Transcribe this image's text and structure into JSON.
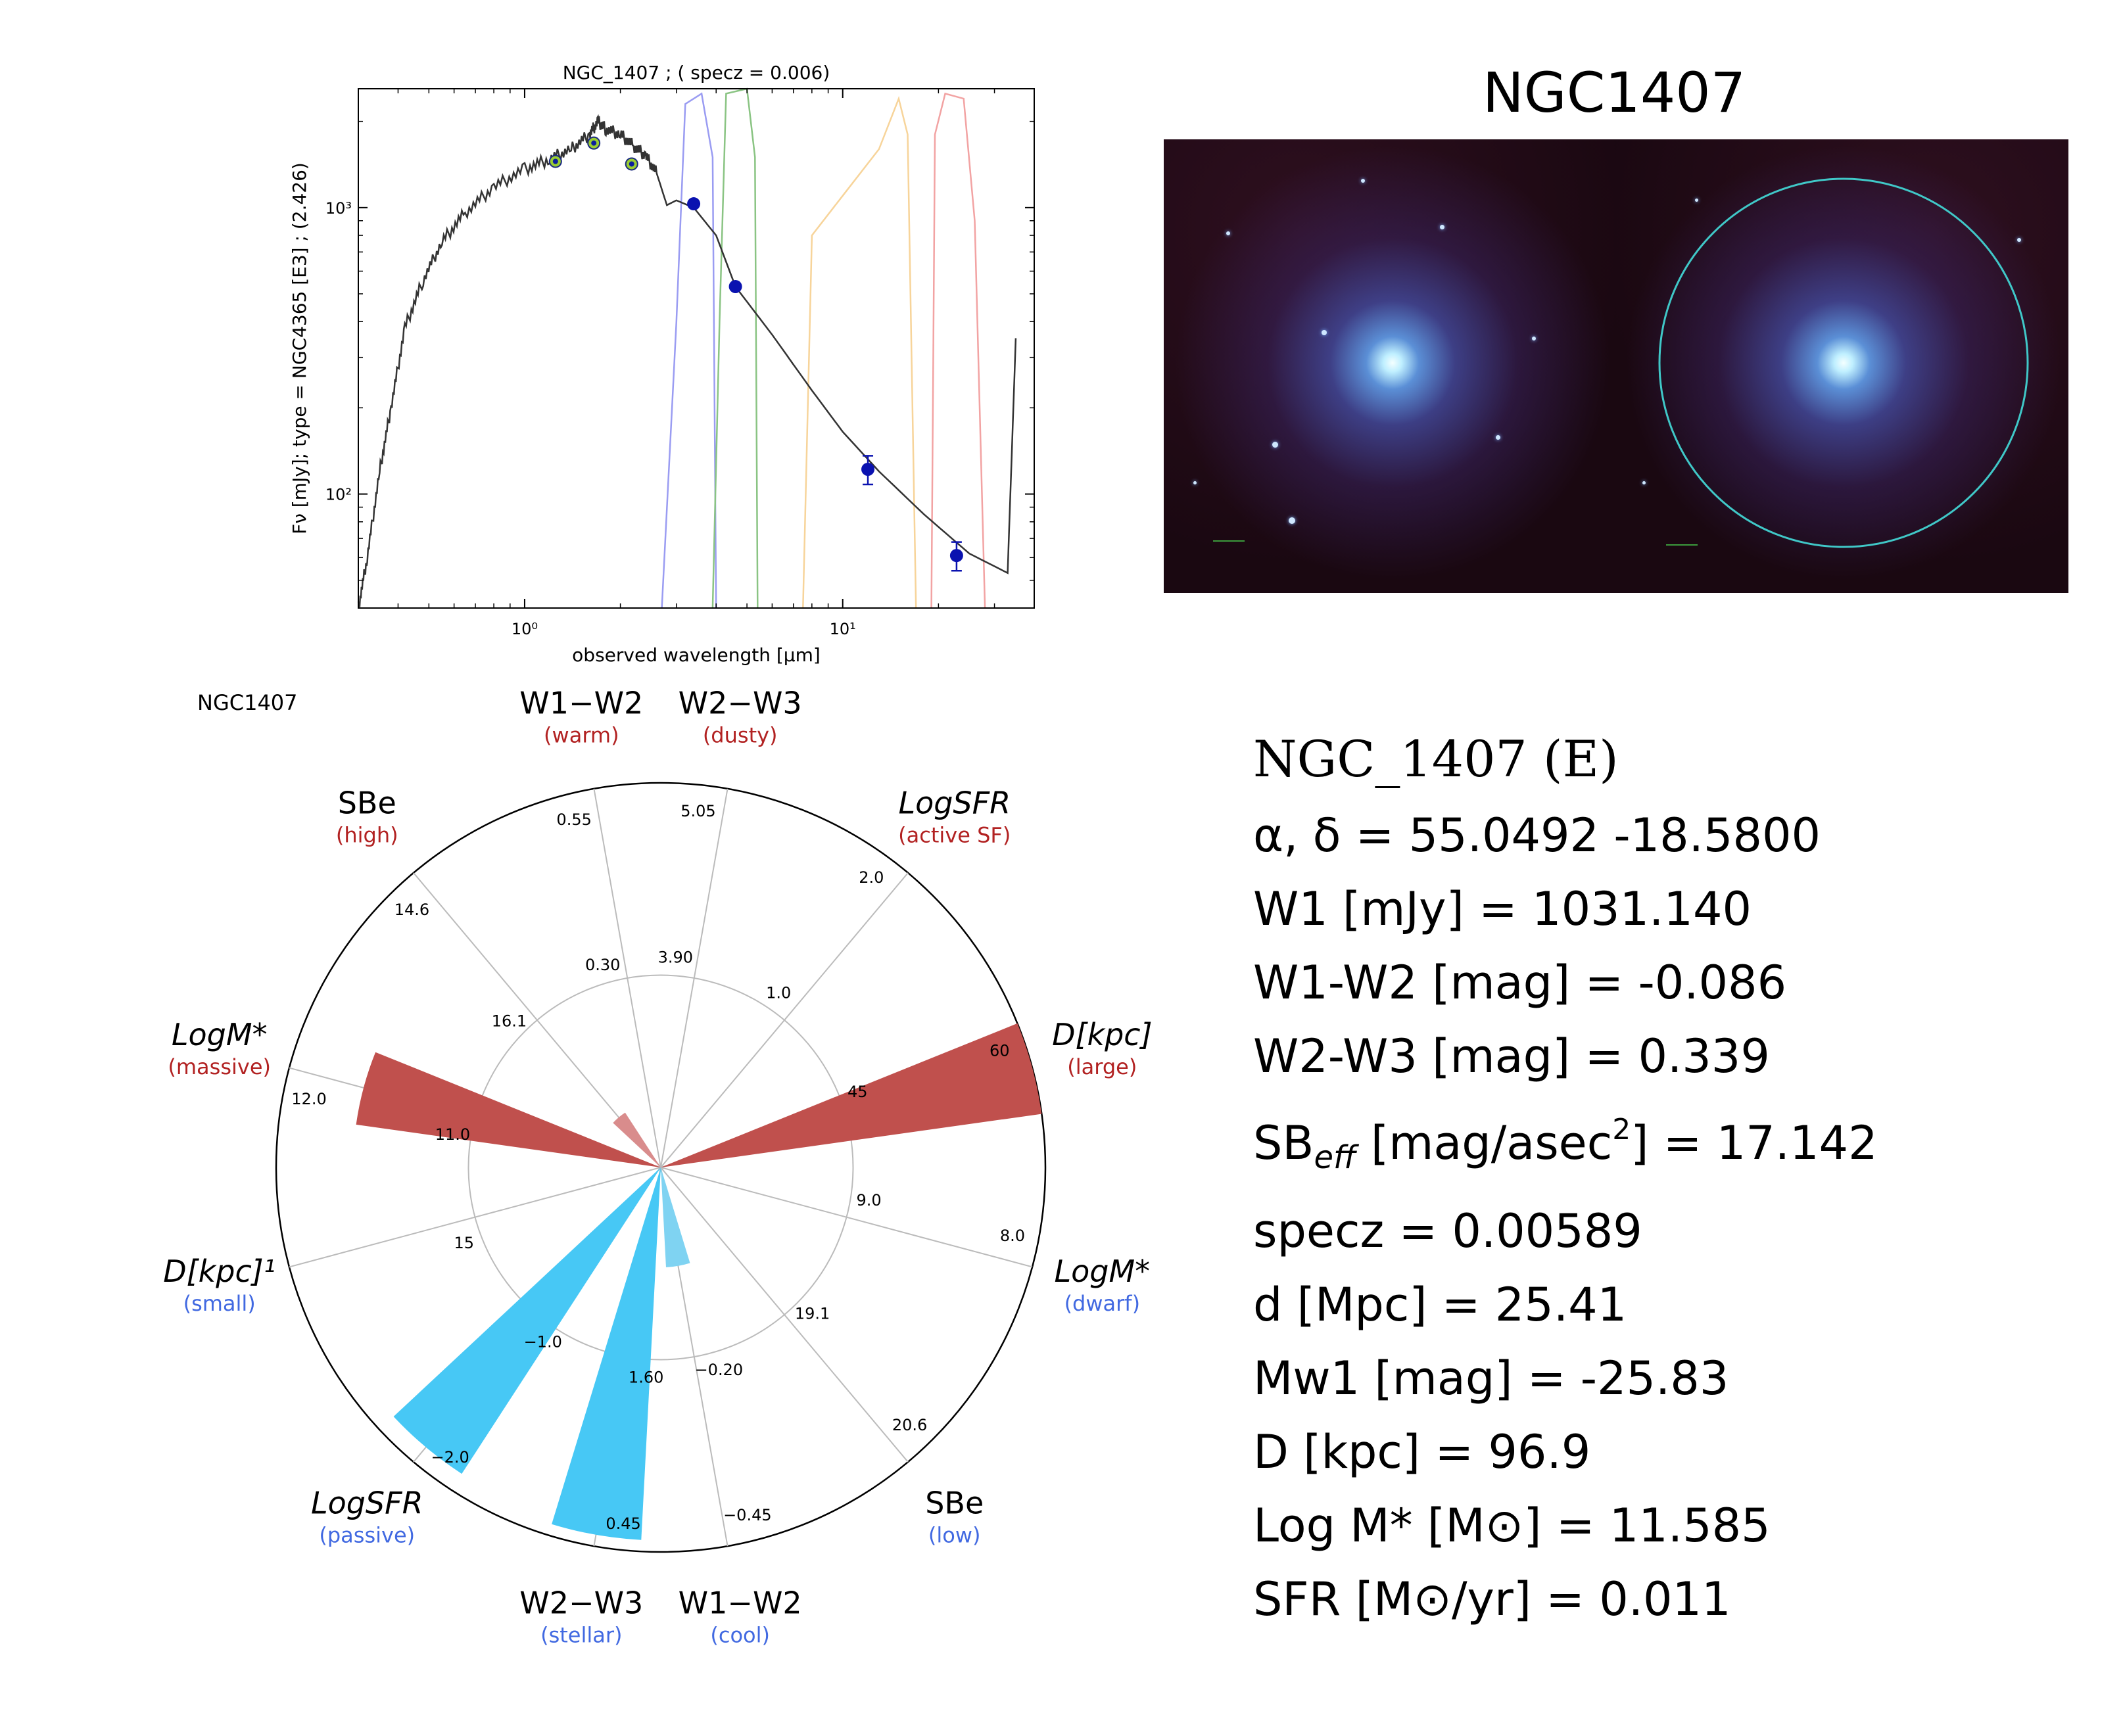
{
  "sed_chart": {
    "title": "NGC_1407 ; ( specz = 0.006)",
    "ylabel": "Fν [mJy];  type = NGC4365 [E3] ; (2.426)",
    "xlabel": "observed wavelength [μm]",
    "chart_data": {
      "type": "scatter",
      "title": "NGC_1407 ; ( specz = 0.006)",
      "xlabel": "observed wavelength [μm]",
      "ylabel": "Fν [mJy];  type = NGC4365 [E3] ; (2.426)",
      "xscale": "log",
      "yscale": "log",
      "xlim": [
        0.3,
        40
      ],
      "ylim": [
        40,
        2600
      ],
      "x_ticks": [
        {
          "value": 1,
          "label": "10⁰"
        },
        {
          "value": 10,
          "label": "10¹"
        }
      ],
      "y_ticks": [
        {
          "value": 100,
          "label": "10²"
        },
        {
          "value": 1000,
          "label": "10³"
        }
      ],
      "series": [
        {
          "marker": "green-filled",
          "color": "#0b1f9e",
          "x": [
            1.25,
            1.65,
            2.17
          ],
          "y": [
            1450,
            1680,
            1420
          ]
        },
        {
          "marker": "blue-dot",
          "color": "#0a12b0",
          "x": [
            3.4,
            4.6,
            12.0,
            22.8
          ],
          "y": [
            1031,
            530,
            122,
            61
          ],
          "yerr": [
            0,
            0,
            14,
            7
          ]
        }
      ],
      "template_sed": [
        [
          0.3,
          40
        ],
        [
          0.32,
          60
        ],
        [
          0.35,
          120
        ],
        [
          0.38,
          200
        ],
        [
          0.42,
          380
        ],
        [
          0.48,
          560
        ],
        [
          0.55,
          760
        ],
        [
          0.65,
          960
        ],
        [
          0.8,
          1180
        ],
        [
          1.0,
          1360
        ],
        [
          1.2,
          1480
        ],
        [
          1.4,
          1600
        ],
        [
          1.6,
          1800
        ],
        [
          1.7,
          2000
        ],
        [
          1.8,
          1880
        ],
        [
          2.0,
          1800
        ],
        [
          2.2,
          1640
        ],
        [
          2.4,
          1520
        ],
        [
          2.6,
          1320
        ],
        [
          2.8,
          1020
        ],
        [
          3.0,
          1060
        ],
        [
          3.4,
          1000
        ],
        [
          4.0,
          800
        ],
        [
          4.6,
          530
        ],
        [
          6.0,
          360
        ],
        [
          8.0,
          230
        ],
        [
          10.0,
          165
        ],
        [
          13.0,
          120
        ],
        [
          18.0,
          85
        ],
        [
          25.0,
          62
        ],
        [
          33.0,
          53
        ],
        [
          35.0,
          350
        ]
      ],
      "filter_curves": [
        {
          "color": "#9a9cf2",
          "points": [
            [
              2.7,
              40
            ],
            [
              3.0,
              400
            ],
            [
              3.2,
              2300
            ],
            [
              3.6,
              2500
            ],
            [
              3.9,
              1500
            ],
            [
              4.0,
              40
            ]
          ]
        },
        {
          "color": "#8ac483",
          "points": [
            [
              3.9,
              40
            ],
            [
              4.1,
              400
            ],
            [
              4.3,
              2500
            ],
            [
              5.0,
              2600
            ],
            [
              5.3,
              1500
            ],
            [
              5.4,
              40
            ]
          ]
        },
        {
          "color": "#f7d49a",
          "points": [
            [
              7.5,
              40
            ],
            [
              8.0,
              800
            ],
            [
              10.0,
              1100
            ],
            [
              13.0,
              1600
            ],
            [
              15.0,
              2400
            ],
            [
              16.0,
              1800
            ],
            [
              17.0,
              40
            ]
          ]
        },
        {
          "color": "#f2a3a3",
          "points": [
            [
              19.0,
              40
            ],
            [
              19.5,
              1800
            ],
            [
              21.0,
              2500
            ],
            [
              24.0,
              2400
            ],
            [
              26.0,
              900
            ],
            [
              28.0,
              40
            ]
          ]
        }
      ]
    }
  },
  "image": {
    "title": "NGC1407"
  },
  "radar": {
    "name": "NGC1407",
    "chart_data": {
      "type": "polar-bar",
      "title": "NGC1407",
      "axes": [
        {
          "label": "W1−W2",
          "sub": "(warm)",
          "sub_color": "#b22222",
          "angle": 100,
          "inner_tick": "0.30",
          "outer_tick": "0.55"
        },
        {
          "label": "W2−W3",
          "sub": "(dusty)",
          "sub_color": "#b22222",
          "angle": 80,
          "inner_tick": "3.90",
          "outer_tick": "5.05"
        },
        {
          "label": "LogSFR",
          "sub": "(active SF)",
          "sub_color": "#b22222",
          "angle": 50,
          "inner_tick": "1.0",
          "outer_tick": "2.0"
        },
        {
          "label": "D[kpc]",
          "sub": "(large)",
          "sub_color": "#b22222",
          "angle": 15,
          "inner_tick": "45",
          "outer_tick": "60"
        },
        {
          "label": "LogM*",
          "sub": "(dwarf)",
          "sub_color": "#4169e1",
          "angle": -15,
          "inner_tick": "9.0",
          "outer_tick": "8.0"
        },
        {
          "label": "SBe",
          "sub": "(low)",
          "sub_color": "#4169e1",
          "angle": -50,
          "inner_tick": "19.1",
          "outer_tick": "20.6"
        },
        {
          "label": "W1−W2",
          "sub": "(cool)",
          "sub_color": "#4169e1",
          "angle": -80,
          "inner_tick": "−0.20",
          "outer_tick": "−0.45"
        },
        {
          "label": "W2−W3",
          "sub": "(stellar)",
          "sub_color": "#4169e1",
          "angle": -100,
          "inner_tick": "1.60",
          "outer_tick": "0.45"
        },
        {
          "label": "LogSFR",
          "sub": "(passive)",
          "sub_color": "#4169e1",
          "angle": -130,
          "inner_tick": "−1.0",
          "outer_tick": "−2.0"
        },
        {
          "label": "D[kpc]¹",
          "sub": "(small)",
          "sub_color": "#4169e1",
          "angle": -165,
          "inner_tick": "15",
          "outer_tick": ""
        },
        {
          "label": "LogM*",
          "sub": "(massive)",
          "sub_color": "#b22222",
          "angle": 165,
          "inner_tick": "11.0",
          "outer_tick": "12.0"
        },
        {
          "label": "SBe",
          "sub": "(high)",
          "sub_color": "#b22222",
          "angle": 130,
          "inner_tick": "16.1",
          "outer_tick": "14.6"
        }
      ],
      "bars": [
        {
          "axis": "D[kpc] (large)",
          "angle": 15,
          "value": 1.0,
          "color": "#c0504d"
        },
        {
          "axis": "LogM* (massive)",
          "angle": 165,
          "value": 0.8,
          "color": "#c0504d"
        },
        {
          "axis": "SBe (high)",
          "angle": 130,
          "value": 0.17,
          "color": "#d98c8c"
        },
        {
          "axis": "W1−W2 (cool)",
          "angle": -80,
          "value": 0.26,
          "color": "#7fd3f2"
        },
        {
          "axis": "W2−W3 (stellar)",
          "angle": -100,
          "value": 0.97,
          "color": "#47c8f5"
        },
        {
          "axis": "LogSFR (passive)",
          "angle": -130,
          "value": 0.95,
          "color": "#47c8f5"
        }
      ],
      "inner_ring": 0.5
    }
  },
  "info": {
    "title": "NGC_1407  (E)",
    "radec": "α, δ = 55.0492 -18.5800",
    "w1": "W1 [mJy] = 1031.140",
    "w1w2": "W1-W2 [mag] = -0.086",
    "w2w3": "W2-W3 [mag] = 0.339",
    "sb_prefix": "SB",
    "sb_sub": "eff",
    "sb_mid": " [mag/asec",
    "sb_sup": "2",
    "sb_suffix": "] = 17.142",
    "specz": "specz = 0.00589",
    "dist": "d [Mpc] = 25.41",
    "mw1": "Mw1 [mag] = -25.83",
    "diam": "D [kpc] = 96.9",
    "logm": "Log M* [M⊙] = 11.585",
    "sfr": "SFR [M⊙/yr] = 0.011"
  }
}
